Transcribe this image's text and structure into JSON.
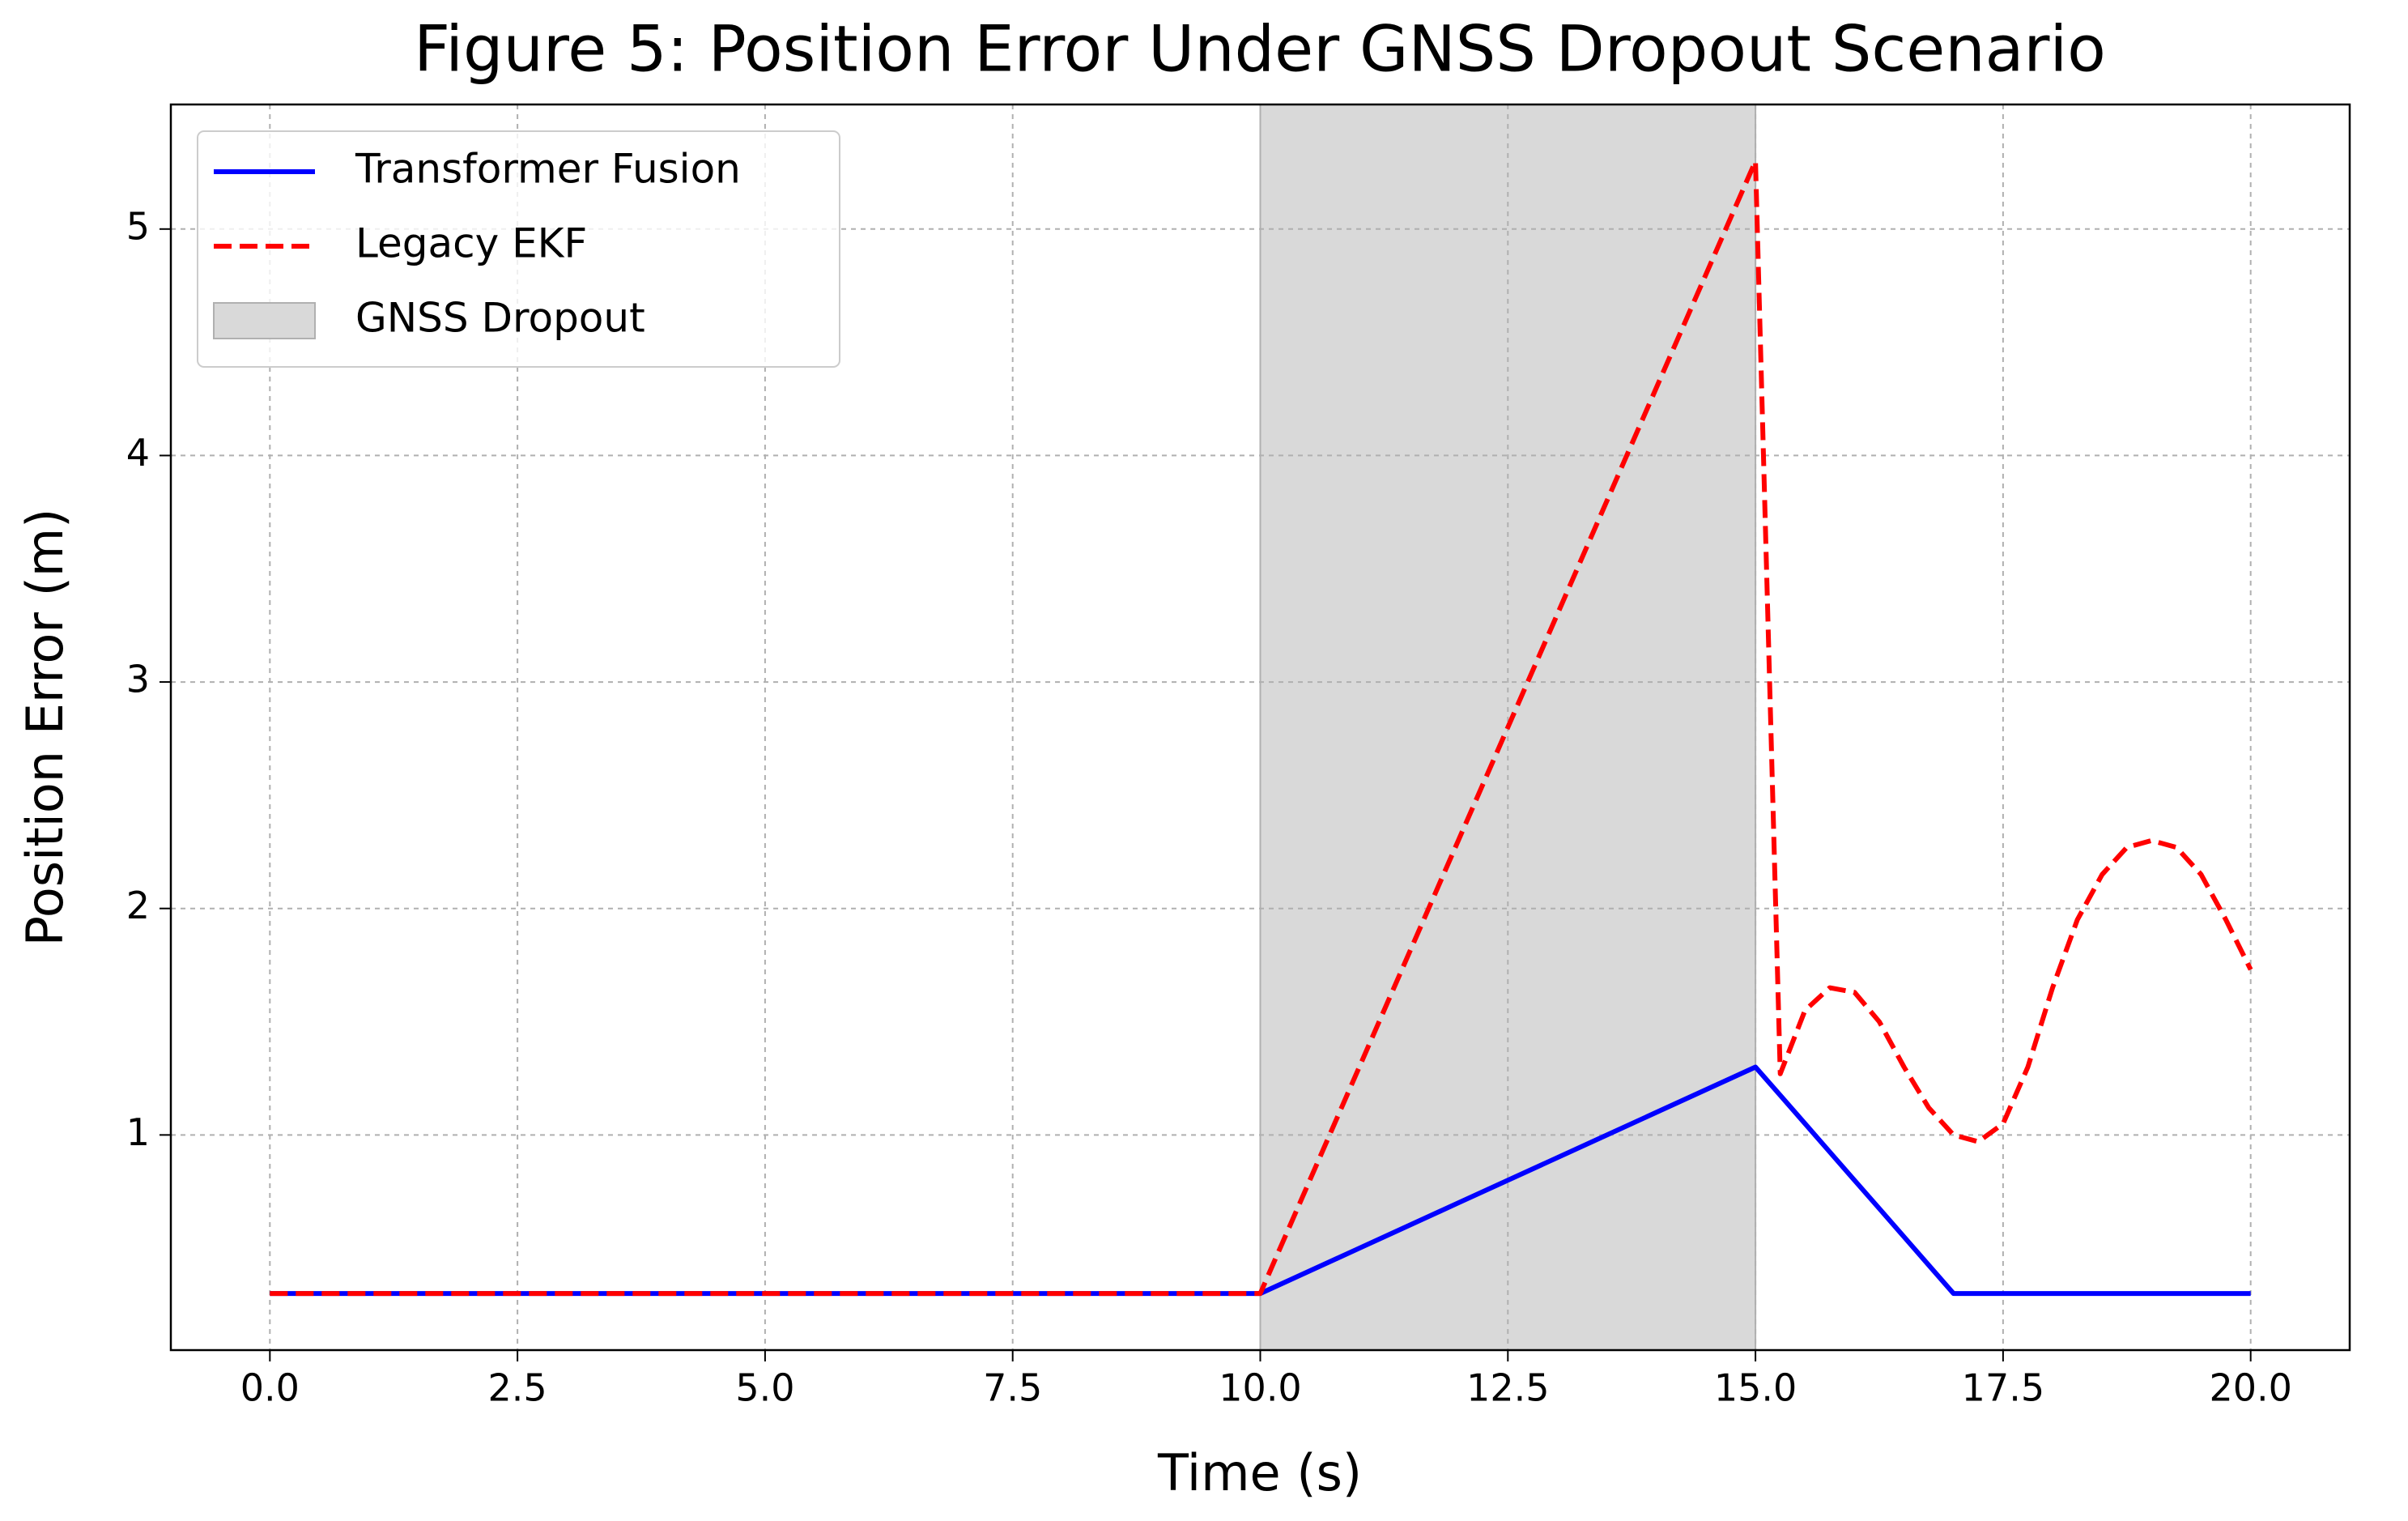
{
  "chart_data": {
    "type": "line",
    "title": "Figure 5: Position Error Under GNSS Dropout Scenario",
    "x_label": "Time (s)",
    "y_label": "Position Error (m)",
    "x": [
      0,
      10,
      11,
      12,
      13,
      14,
      15,
      15.25,
      15.5,
      15.75,
      16,
      16.25,
      16.5,
      16.75,
      17,
      17.25,
      17.5,
      17.75,
      18,
      18.25,
      18.5,
      18.75,
      19,
      19.25,
      19.5,
      19.75,
      20
    ],
    "series": [
      {
        "name": "Transformer Fusion",
        "color": "#0000ff",
        "style": "solid",
        "values": [
          0.3,
          0.3,
          0.5,
          0.7,
          0.9,
          1.1,
          1.3,
          1.175,
          1.05,
          0.925,
          0.8,
          0.675,
          0.55,
          0.425,
          0.3,
          0.3,
          0.3,
          0.3,
          0.3,
          0.3,
          0.3,
          0.3,
          0.3,
          0.3,
          0.3,
          0.3,
          0.3
        ]
      },
      {
        "name": "Legacy EKF",
        "color": "#ff0000",
        "style": "dashed",
        "values": [
          0.3,
          0.3,
          1.3,
          2.3,
          3.3,
          4.3,
          5.3,
          1.27,
          1.55,
          1.65,
          1.63,
          1.5,
          1.3,
          1.12,
          1.0,
          0.97,
          1.05,
          1.3,
          1.65,
          1.95,
          2.15,
          2.27,
          2.3,
          2.27,
          2.15,
          1.95,
          1.73
        ]
      }
    ],
    "shaded_region": {
      "name": "GNSS Dropout",
      "start": 10,
      "end": 15,
      "color": "#d9d9d9"
    },
    "xlim": [
      -1,
      21
    ],
    "ylim": [
      0.05,
      5.55
    ],
    "xticks": [
      {
        "value": 0,
        "label": "0.0"
      },
      {
        "value": 2.5,
        "label": "2.5"
      },
      {
        "value": 5,
        "label": "5.0"
      },
      {
        "value": 7.5,
        "label": "7.5"
      },
      {
        "value": 10,
        "label": "10.0"
      },
      {
        "value": 12.5,
        "label": "12.5"
      },
      {
        "value": 15,
        "label": "15.0"
      },
      {
        "value": 17.5,
        "label": "17.5"
      },
      {
        "value": 20,
        "label": "20.0"
      }
    ],
    "yticks": [
      1,
      2,
      3,
      4,
      5
    ],
    "grid": true,
    "legend": "upper left"
  }
}
